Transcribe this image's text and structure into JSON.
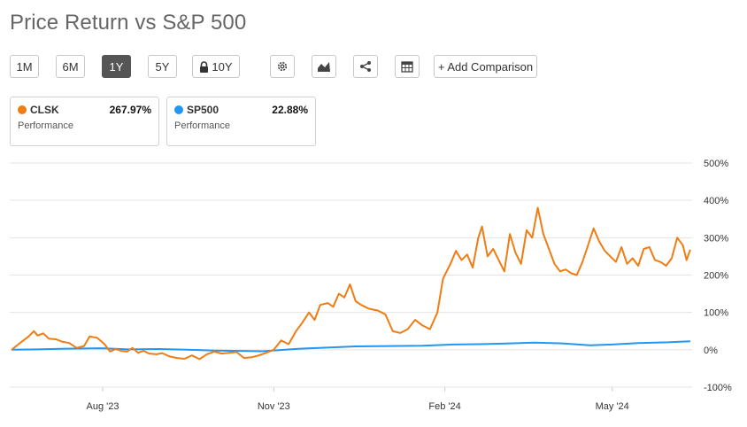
{
  "title": "Price Return vs S&P 500",
  "toolbar": {
    "ranges": [
      "1M",
      "6M",
      "1Y",
      "5Y",
      "10Y"
    ],
    "active_range": "1Y",
    "icons": [
      "settings-gear-icon",
      "chart-type-icon",
      "share-icon",
      "table-icon"
    ],
    "add_comparison": "+ Add Comparison"
  },
  "legend": [
    {
      "ticker": "CLSK",
      "value": "267.97%",
      "sub": "Performance",
      "color": "#f07c14"
    },
    {
      "ticker": "SP500",
      "value": "22.88%",
      "sub": "Performance",
      "color": "#2196f3"
    }
  ],
  "chart_data": {
    "type": "line",
    "title": "",
    "xlabel": "",
    "ylabel": "",
    "x_tick_labels": [
      "Aug '23",
      "Nov '23",
      "Feb '24",
      "May '24"
    ],
    "x_tick_dates": [
      "2023-08-01",
      "2023-11-01",
      "2024-02-01",
      "2024-05-01"
    ],
    "y_tick_labels": [
      "500%",
      "400%",
      "300%",
      "200%",
      "100%",
      "0%",
      "-100%"
    ],
    "ylim": [
      -100,
      500
    ],
    "xlim": [
      "2023-06-12",
      "2024-06-13"
    ],
    "y_grid": true,
    "series": [
      {
        "name": "CLSK",
        "color": "#f07c14",
        "points": [
          [
            "2023-06-13",
            0
          ],
          [
            "2023-06-18",
            20
          ],
          [
            "2023-06-22",
            35
          ],
          [
            "2023-06-25",
            50
          ],
          [
            "2023-06-27",
            38
          ],
          [
            "2023-06-30",
            44
          ],
          [
            "2023-07-03",
            30
          ],
          [
            "2023-07-07",
            28
          ],
          [
            "2023-07-10",
            22
          ],
          [
            "2023-07-14",
            18
          ],
          [
            "2023-07-18",
            5
          ],
          [
            "2023-07-22",
            10
          ],
          [
            "2023-07-25",
            36
          ],
          [
            "2023-07-29",
            32
          ],
          [
            "2023-08-02",
            15
          ],
          [
            "2023-08-05",
            -5
          ],
          [
            "2023-08-08",
            2
          ],
          [
            "2023-08-11",
            -3
          ],
          [
            "2023-08-14",
            -5
          ],
          [
            "2023-08-17",
            5
          ],
          [
            "2023-08-20",
            -8
          ],
          [
            "2023-08-23",
            -3
          ],
          [
            "2023-08-26",
            -10
          ],
          [
            "2023-08-30",
            -12
          ],
          [
            "2023-09-02",
            -9
          ],
          [
            "2023-09-06",
            -18
          ],
          [
            "2023-09-10",
            -22
          ],
          [
            "2023-09-14",
            -24
          ],
          [
            "2023-09-18",
            -15
          ],
          [
            "2023-09-22",
            -25
          ],
          [
            "2023-09-26",
            -12
          ],
          [
            "2023-09-30",
            -5
          ],
          [
            "2023-10-04",
            -10
          ],
          [
            "2023-10-08",
            -8
          ],
          [
            "2023-10-12",
            -6
          ],
          [
            "2023-10-16",
            -22
          ],
          [
            "2023-10-20",
            -20
          ],
          [
            "2023-10-24",
            -15
          ],
          [
            "2023-10-28",
            -8
          ],
          [
            "2023-11-01",
            0
          ],
          [
            "2023-11-05",
            25
          ],
          [
            "2023-11-09",
            15
          ],
          [
            "2023-11-13",
            50
          ],
          [
            "2023-11-16",
            70
          ],
          [
            "2023-11-20",
            100
          ],
          [
            "2023-11-23",
            80
          ],
          [
            "2023-11-26",
            120
          ],
          [
            "2023-11-30",
            125
          ],
          [
            "2023-12-03",
            115
          ],
          [
            "2023-12-06",
            150
          ],
          [
            "2023-12-09",
            140
          ],
          [
            "2023-12-12",
            175
          ],
          [
            "2023-12-15",
            130
          ],
          [
            "2023-12-18",
            120
          ],
          [
            "2023-12-22",
            110
          ],
          [
            "2023-12-27",
            105
          ],
          [
            "2023-12-31",
            95
          ],
          [
            "2024-01-04",
            50
          ],
          [
            "2024-01-08",
            45
          ],
          [
            "2024-01-12",
            55
          ],
          [
            "2024-01-16",
            80
          ],
          [
            "2024-01-20",
            65
          ],
          [
            "2024-01-24",
            55
          ],
          [
            "2024-01-28",
            100
          ],
          [
            "2024-01-31",
            190
          ],
          [
            "2024-02-04",
            230
          ],
          [
            "2024-02-07",
            265
          ],
          [
            "2024-02-10",
            240
          ],
          [
            "2024-02-13",
            255
          ],
          [
            "2024-02-16",
            220
          ],
          [
            "2024-02-19",
            300
          ],
          [
            "2024-02-21",
            330
          ],
          [
            "2024-02-24",
            250
          ],
          [
            "2024-02-27",
            270
          ],
          [
            "2024-03-01",
            240
          ],
          [
            "2024-03-04",
            210
          ],
          [
            "2024-03-07",
            310
          ],
          [
            "2024-03-10",
            260
          ],
          [
            "2024-03-13",
            230
          ],
          [
            "2024-03-16",
            320
          ],
          [
            "2024-03-19",
            300
          ],
          [
            "2024-03-22",
            380
          ],
          [
            "2024-03-25",
            310
          ],
          [
            "2024-03-28",
            270
          ],
          [
            "2024-03-31",
            230
          ],
          [
            "2024-04-03",
            210
          ],
          [
            "2024-04-06",
            215
          ],
          [
            "2024-04-09",
            205
          ],
          [
            "2024-04-12",
            200
          ],
          [
            "2024-04-15",
            235
          ],
          [
            "2024-04-18",
            280
          ],
          [
            "2024-04-21",
            325
          ],
          [
            "2024-04-24",
            290
          ],
          [
            "2024-04-27",
            265
          ],
          [
            "2024-04-30",
            250
          ],
          [
            "2024-05-03",
            235
          ],
          [
            "2024-05-06",
            275
          ],
          [
            "2024-05-09",
            230
          ],
          [
            "2024-05-12",
            245
          ],
          [
            "2024-05-15",
            225
          ],
          [
            "2024-05-18",
            270
          ],
          [
            "2024-05-21",
            275
          ],
          [
            "2024-05-24",
            240
          ],
          [
            "2024-05-27",
            235
          ],
          [
            "2024-05-30",
            225
          ],
          [
            "2024-06-02",
            245
          ],
          [
            "2024-06-05",
            300
          ],
          [
            "2024-06-08",
            280
          ],
          [
            "2024-06-10",
            240
          ],
          [
            "2024-06-12",
            268
          ]
        ]
      },
      {
        "name": "SP500",
        "color": "#2196f3",
        "points": [
          [
            "2023-06-13",
            0
          ],
          [
            "2023-06-27",
            1
          ],
          [
            "2023-07-12",
            3
          ],
          [
            "2023-07-31",
            4
          ],
          [
            "2023-08-15",
            1
          ],
          [
            "2023-08-31",
            2
          ],
          [
            "2023-09-15",
            0
          ],
          [
            "2023-10-01",
            -2
          ],
          [
            "2023-10-26",
            -4
          ],
          [
            "2023-11-15",
            3
          ],
          [
            "2023-12-01",
            6
          ],
          [
            "2023-12-15",
            9
          ],
          [
            "2024-01-02",
            10
          ],
          [
            "2024-01-20",
            11
          ],
          [
            "2024-02-05",
            14
          ],
          [
            "2024-02-20",
            15
          ],
          [
            "2024-03-05",
            17
          ],
          [
            "2024-03-20",
            19
          ],
          [
            "2024-04-05",
            17
          ],
          [
            "2024-04-19",
            12
          ],
          [
            "2024-05-01",
            14
          ],
          [
            "2024-05-15",
            18
          ],
          [
            "2024-05-31",
            20
          ],
          [
            "2024-06-12",
            22.88
          ]
        ]
      }
    ]
  }
}
